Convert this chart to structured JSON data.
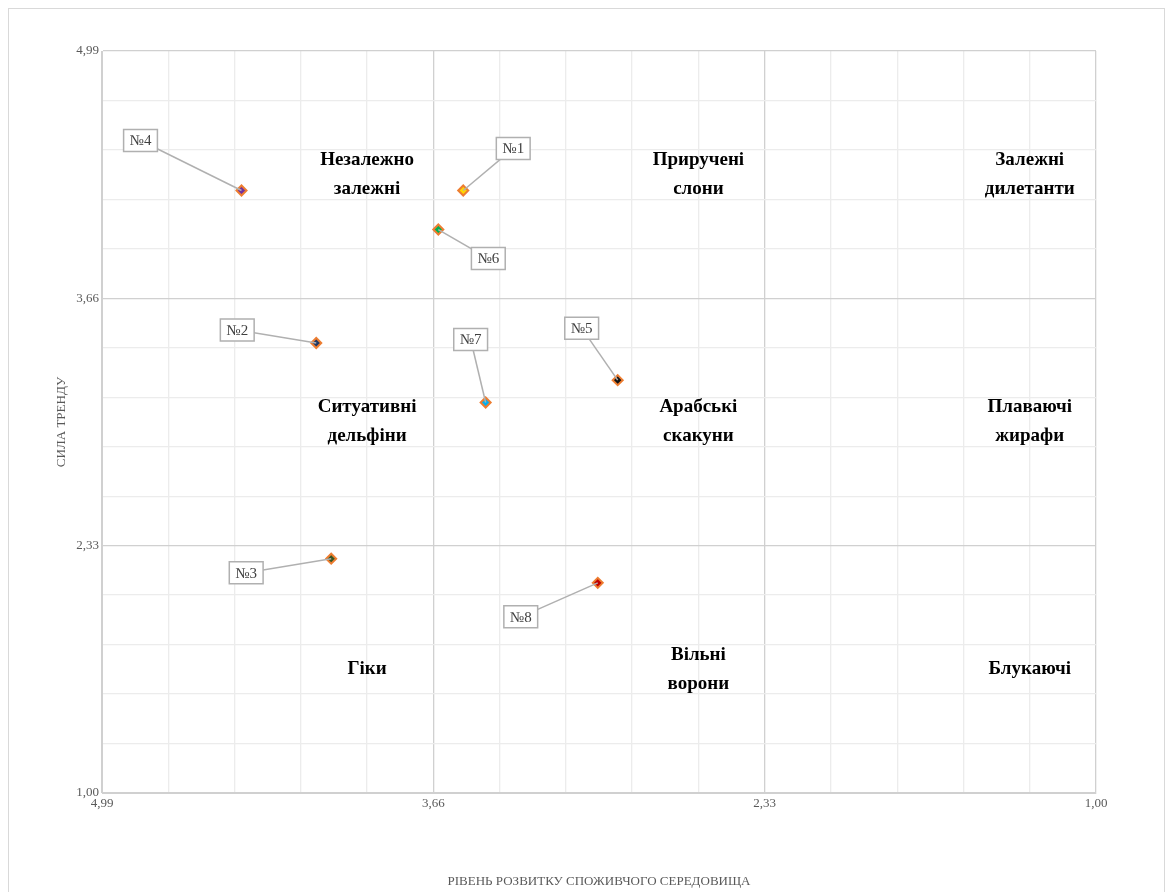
{
  "chart_data": {
    "type": "scatter",
    "xlabel": "РІВЕНЬ РОЗВИТКУ СПОЖИВЧОГО СЕРЕДОВИЩА",
    "ylabel": "СИЛА ТРЕНДУ",
    "xlim": [
      4.99,
      1.0
    ],
    "ylim": [
      1.0,
      4.99
    ],
    "xticks": [
      {
        "value": 4.99,
        "label": "4,99"
      },
      {
        "value": 4.724,
        "label": null
      },
      {
        "value": 4.458,
        "label": null
      },
      {
        "value": 4.192,
        "label": null
      },
      {
        "value": 3.926,
        "label": null
      },
      {
        "value": 3.66,
        "label": "3,66"
      },
      {
        "value": 3.394,
        "label": null
      },
      {
        "value": 3.128,
        "label": null
      },
      {
        "value": 2.862,
        "label": null
      },
      {
        "value": 2.596,
        "label": null
      },
      {
        "value": 2.33,
        "label": "2,33"
      },
      {
        "value": 2.064,
        "label": null
      },
      {
        "value": 1.798,
        "label": null
      },
      {
        "value": 1.532,
        "label": null
      },
      {
        "value": 1.266,
        "label": null
      },
      {
        "value": 1.0,
        "label": "1,00"
      }
    ],
    "yticks": [
      {
        "value": 1.0,
        "label": "1,00"
      },
      {
        "value": 1.266,
        "label": null
      },
      {
        "value": 1.532,
        "label": null
      },
      {
        "value": 1.798,
        "label": null
      },
      {
        "value": 2.064,
        "label": null
      },
      {
        "value": 2.33,
        "label": "2,33"
      },
      {
        "value": 2.596,
        "label": null
      },
      {
        "value": 2.862,
        "label": null
      },
      {
        "value": 3.128,
        "label": null
      },
      {
        "value": 3.394,
        "label": null
      },
      {
        "value": 3.66,
        "label": "3,66"
      },
      {
        "value": 3.926,
        "label": null
      },
      {
        "value": 4.192,
        "label": null
      },
      {
        "value": 4.458,
        "label": null
      },
      {
        "value": 4.724,
        "label": null
      },
      {
        "value": 4.99,
        "label": "4,99"
      }
    ],
    "grid": true,
    "marker": "diamond",
    "series": [
      {
        "name": "№1",
        "color": "#ffd700",
        "x": [
          3.54
        ],
        "values": [
          4.24
        ]
      },
      {
        "name": "№2",
        "color": "#1f3864",
        "x": [
          4.13
        ],
        "values": [
          3.42
        ]
      },
      {
        "name": "№3",
        "color": "#375623",
        "x": [
          4.07
        ],
        "values": [
          2.26
        ]
      },
      {
        "name": "№4",
        "color": "#7030a0",
        "x": [
          4.43
        ],
        "values": [
          4.24
        ]
      },
      {
        "name": "№5",
        "color": "#111111",
        "x": [
          2.92
        ],
        "values": [
          3.22
        ]
      },
      {
        "name": "№6",
        "color": "#00b050",
        "x": [
          3.64
        ],
        "values": [
          4.03
        ]
      },
      {
        "name": "№7",
        "color": "#00b0f0",
        "x": [
          3.45
        ],
        "values": [
          3.1
        ]
      },
      {
        "name": "№8",
        "color": "#c00000",
        "x": [
          3.0
        ],
        "values": [
          2.13
        ]
      }
    ],
    "annotations": [
      "Незалежно\nзалежні",
      "Приручені\nслони",
      "Залежні\nдилетанти",
      "Ситуативні\nдельфіни",
      "Арабські\nскакуни",
      "Плаваючі\nжирафи",
      "Гіки",
      "Вільні\nворони",
      "Блукаючі"
    ]
  }
}
